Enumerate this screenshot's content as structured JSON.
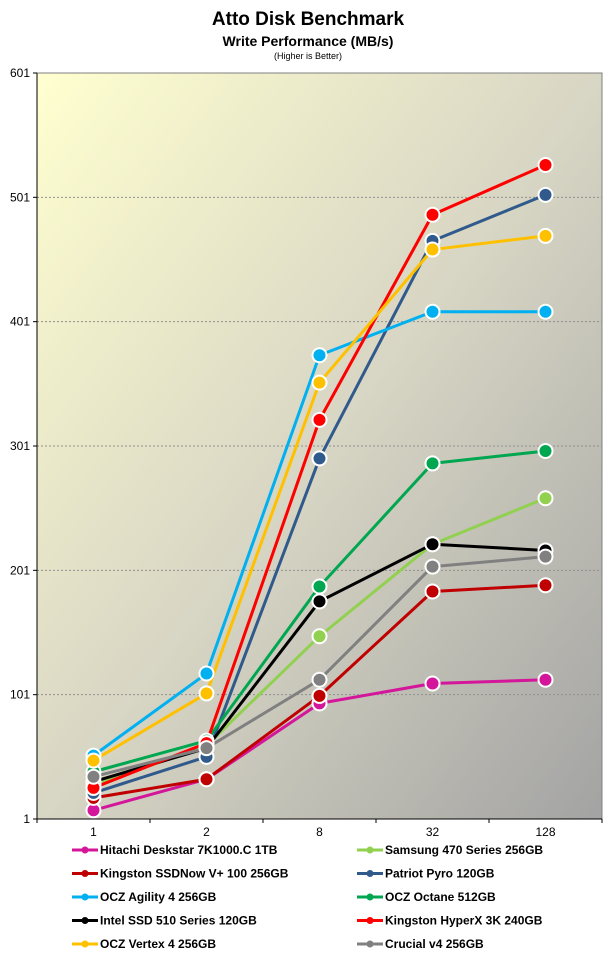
{
  "chart_data": {
    "type": "line",
    "title": "Atto Disk Benchmark",
    "subtitle": "Write Performance (MB/s)",
    "note": "(Higher is Better)",
    "categories": [
      "1",
      "2",
      "8",
      "32",
      "128"
    ],
    "ylim": [
      1,
      601
    ],
    "yticks": [
      1,
      101,
      201,
      301,
      401,
      501,
      601
    ],
    "grid": true,
    "legend_position": "bottom",
    "series": [
      {
        "name": "Hitachi Deskstar 7K1000.C 1TB",
        "color": "#d4169a",
        "values": [
          8,
          33,
          94,
          110,
          113
        ]
      },
      {
        "name": "Samsung 470 Series 256GB",
        "color": "#92d050",
        "values": [
          28,
          60,
          148,
          222,
          259
        ]
      },
      {
        "name": "Kingston SSDNow V+ 100 256GB",
        "color": "#c00000",
        "values": [
          18,
          33,
          100,
          184,
          189
        ]
      },
      {
        "name": "Patriot Pyro 120GB",
        "color": "#305a8c",
        "values": [
          22,
          51,
          291,
          466,
          503
        ]
      },
      {
        "name": "OCZ Agility 4 256GB",
        "color": "#00b0f0",
        "values": [
          52,
          118,
          374,
          409,
          409
        ]
      },
      {
        "name": "OCZ Octane 512GB",
        "color": "#00a650",
        "values": [
          39,
          64,
          188,
          287,
          297
        ]
      },
      {
        "name": "Intel SSD 510 Series 120GB",
        "color": "#000000",
        "values": [
          31,
          58,
          176,
          222,
          217
        ]
      },
      {
        "name": "Kingston HyperX 3K 240GB",
        "color": "#ff0000",
        "values": [
          26,
          62,
          322,
          487,
          527
        ]
      },
      {
        "name": "OCZ Vertex 4 256GB",
        "color": "#ffc000",
        "values": [
          48,
          102,
          352,
          459,
          470
        ]
      },
      {
        "name": "Crucial v4 256GB",
        "color": "#808080",
        "values": [
          35,
          58,
          113,
          204,
          212
        ]
      }
    ]
  }
}
